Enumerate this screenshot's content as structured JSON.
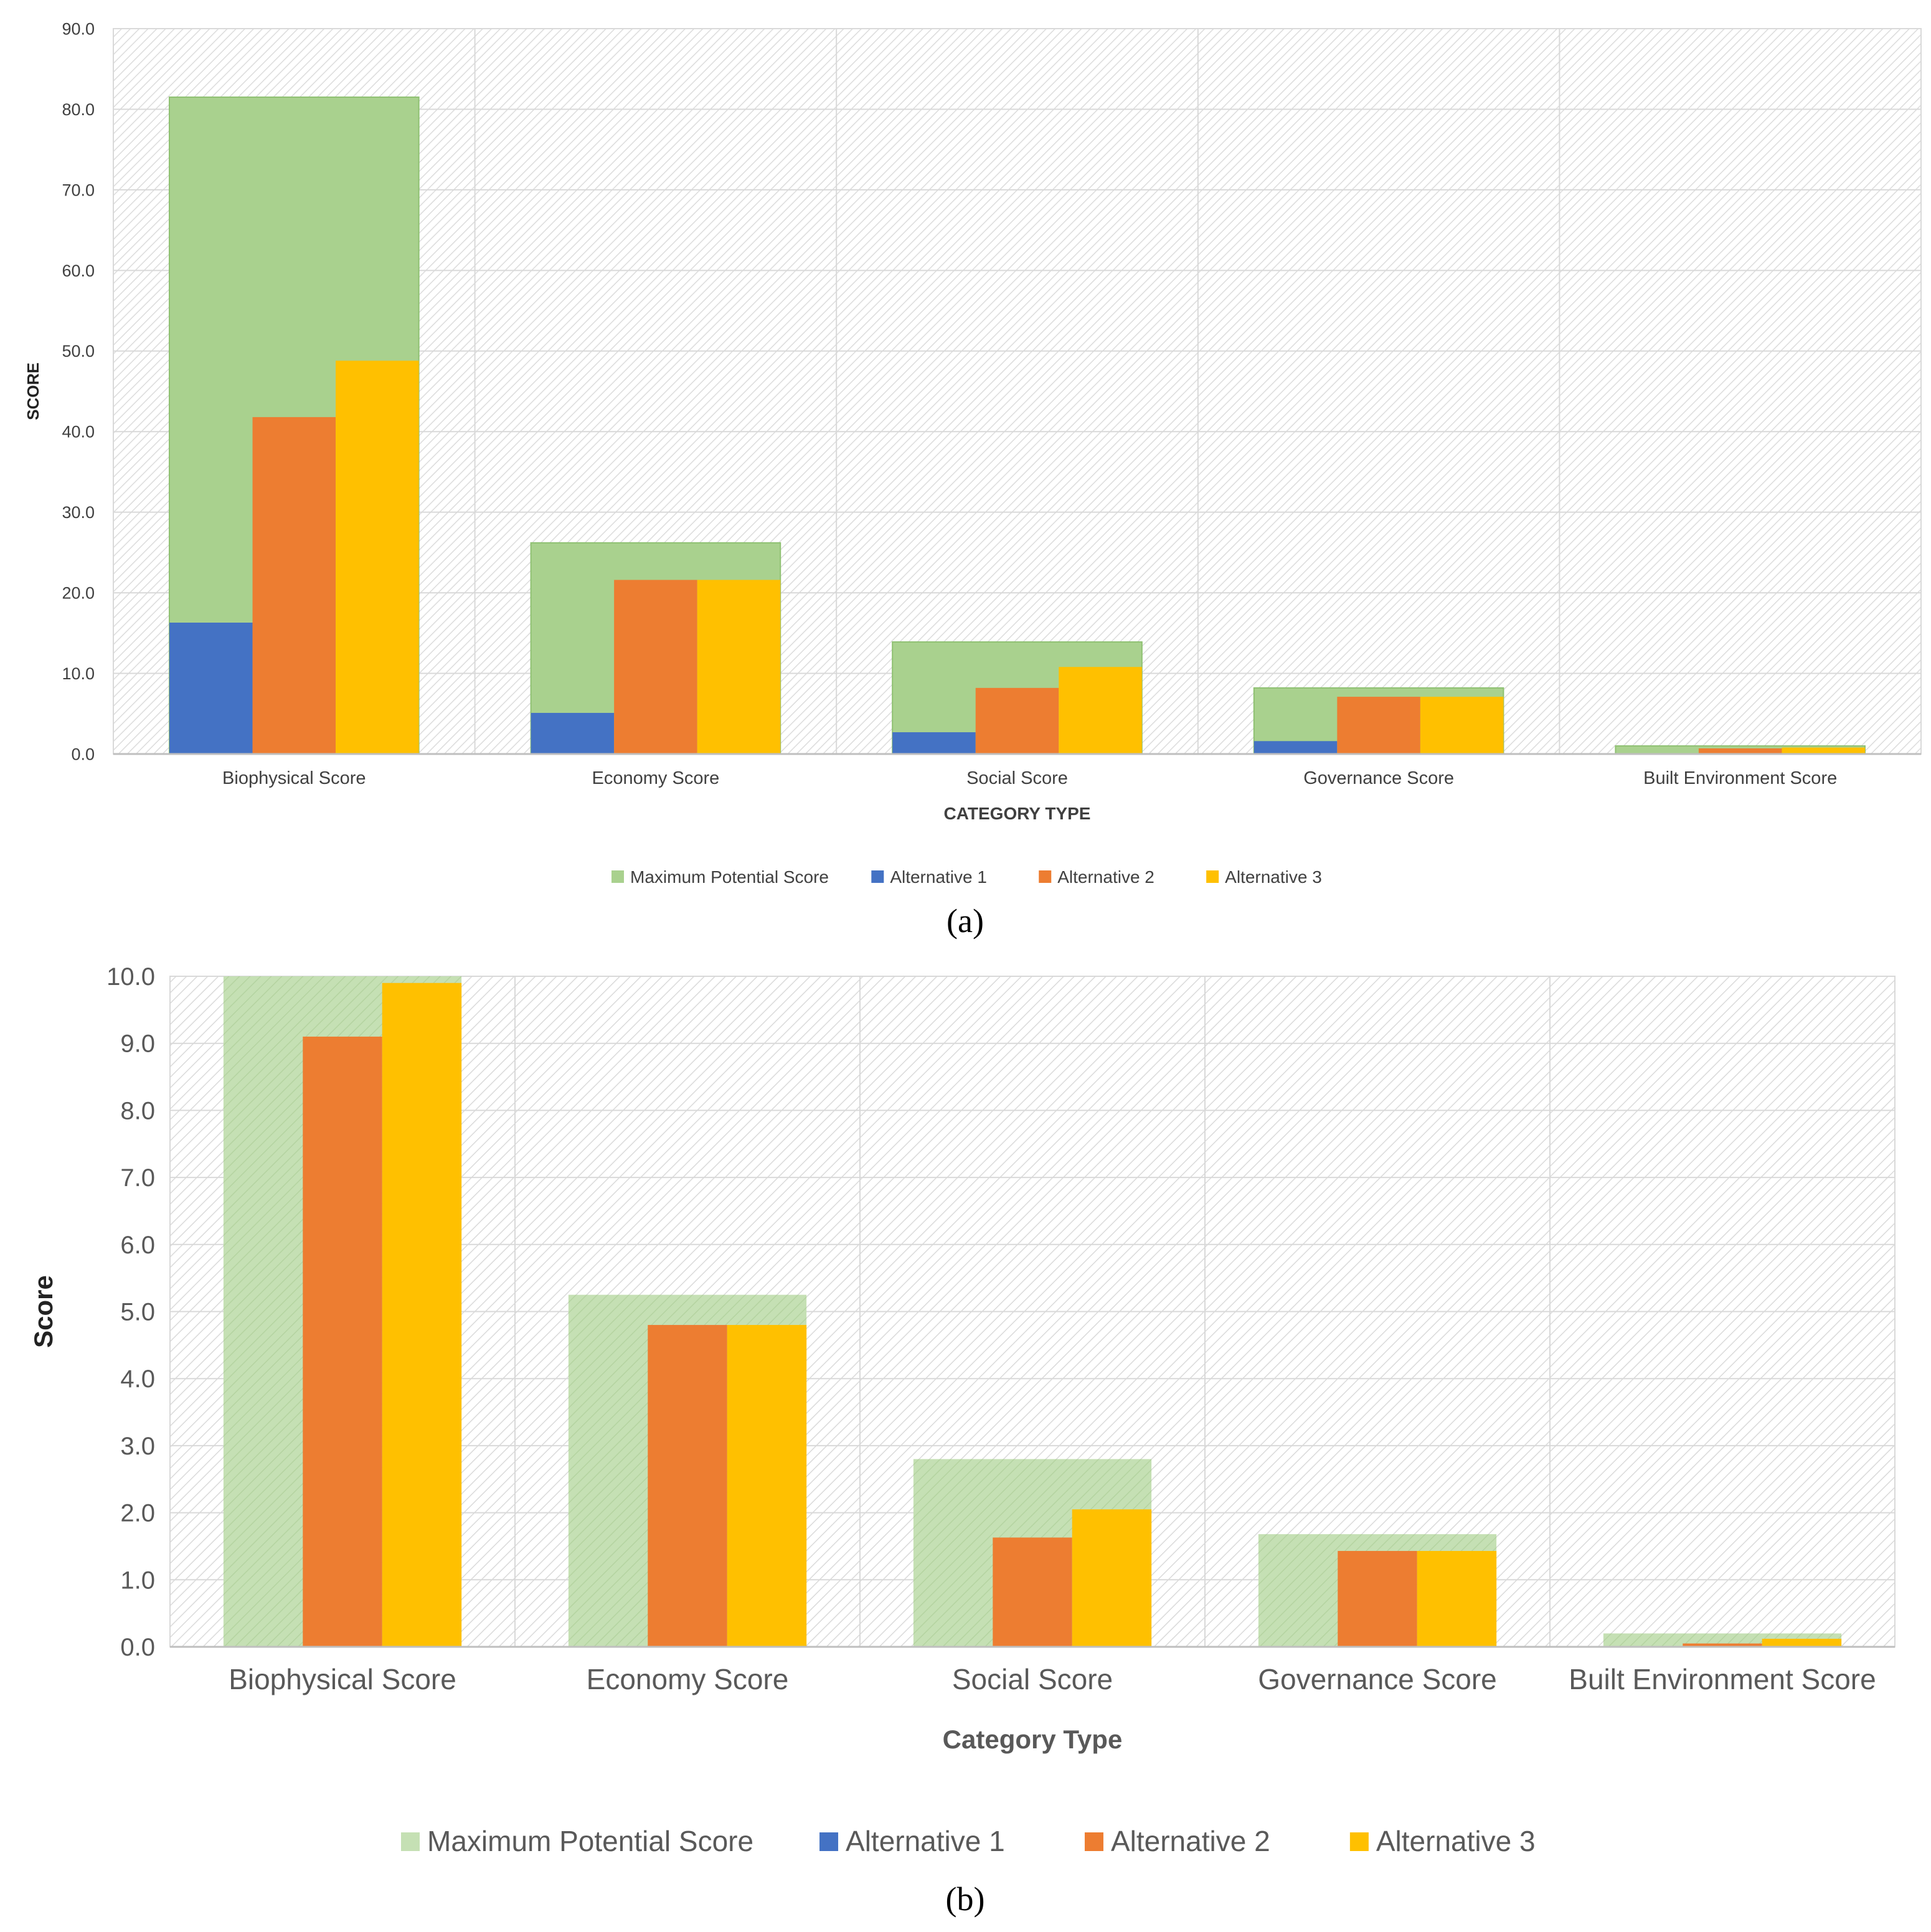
{
  "chart_data": [
    {
      "panel": "(a)",
      "type": "bar",
      "title": "",
      "xlabel": "CATEGORY TYPE",
      "ylabel": "SCORE",
      "ylim": [
        0,
        90
      ],
      "yticks": [
        "0.0",
        "10.0",
        "20.0",
        "30.0",
        "40.0",
        "50.0",
        "60.0",
        "70.0",
        "80.0",
        "90.0"
      ],
      "grid": true,
      "legend_position": "bottom",
      "categories": [
        "Biophysical Score",
        "Economy Score",
        "Social Score",
        "Governance Score",
        "Built Environment Score"
      ],
      "background_series": {
        "name": "Maximum Potential Score",
        "color": "#a9d18e",
        "values": [
          81.5,
          26.2,
          13.9,
          8.2,
          1.0
        ]
      },
      "series": [
        {
          "name": "Alternative 1",
          "color": "#4472c4",
          "values": [
            16.3,
            5.1,
            2.7,
            1.6,
            0.0
          ]
        },
        {
          "name": "Alternative 2",
          "color": "#ed7d31",
          "values": [
            41.8,
            21.6,
            8.2,
            7.1,
            0.7
          ]
        },
        {
          "name": "Alternative 3",
          "color": "#ffc000",
          "values": [
            48.8,
            21.6,
            10.8,
            7.1,
            0.8
          ]
        }
      ]
    },
    {
      "panel": "(b)",
      "type": "bar",
      "title": "",
      "xlabel": "Category Type",
      "ylabel": "Score",
      "ylim": [
        0,
        10
      ],
      "yticks": [
        "0.0",
        "1.0",
        "2.0",
        "3.0",
        "4.0",
        "5.0",
        "6.0",
        "7.0",
        "8.0",
        "9.0",
        "10.0"
      ],
      "grid": true,
      "legend_position": "bottom",
      "categories": [
        "Biophysical Score",
        "Economy Score",
        "Social Score",
        "Governance Score",
        "Built Environment Score"
      ],
      "background_series": {
        "name": "Maximum Potential Score",
        "color": "#c5e0b4",
        "values": [
          10.0,
          5.25,
          2.8,
          1.68,
          0.2
        ]
      },
      "series": [
        {
          "name": "Alternative 1",
          "color": "#4472c4",
          "values": [
            0.0,
            0.0,
            0.0,
            0.0,
            0.0
          ]
        },
        {
          "name": "Alternative 2",
          "color": "#ed7d31",
          "values": [
            9.1,
            4.8,
            1.63,
            1.43,
            0.05
          ]
        },
        {
          "name": "Alternative 3",
          "color": "#ffc000",
          "values": [
            9.9,
            4.8,
            2.05,
            1.43,
            0.12
          ]
        }
      ]
    }
  ]
}
